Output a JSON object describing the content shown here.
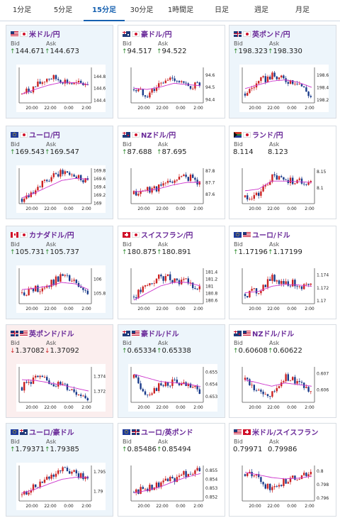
{
  "tabs": [
    "1分足",
    "5分足",
    "15分足",
    "30分足",
    "1時間足",
    "日足",
    "週足",
    "月足"
  ],
  "active_tab": "15分足",
  "bid_label": "Bid",
  "ask_label": "Ask",
  "colors": {
    "up": "#2b8a2b",
    "down": "#cc2222",
    "pair": "#6a2a99",
    "bull": "#cc2222",
    "bear": "#1a3b8a",
    "ma": "#cc33cc"
  },
  "time_ticks": [
    "20:00",
    "22:00",
    "0:00",
    "2:00"
  ],
  "cards": [
    {
      "pair": "米ドル/円",
      "flags": [
        "us",
        "jp"
      ],
      "bid": "144.671",
      "ask": "144.673",
      "bid_dir": "up",
      "ask_dir": "up",
      "bg": "blue",
      "icon": "us-jp-flags-icon",
      "chart_data": {
        "type": "candlestick",
        "x": [
          "20:00",
          "22:00",
          "0:00",
          "2:00"
        ],
        "yticks": [
          "144.8",
          "144.6",
          "144.4"
        ],
        "ylim": [
          144.35,
          144.95
        ],
        "trend": [
          144.5,
          144.62,
          144.78,
          144.74,
          144.66,
          144.68
        ],
        "ma": [
          144.5,
          144.58,
          144.65,
          144.7,
          144.69,
          144.66
        ]
      }
    },
    {
      "pair": "豪ドル/円",
      "flags": [
        "au",
        "jp"
      ],
      "bid": "94.517",
      "ask": "94.522",
      "bid_dir": "up",
      "ask_dir": "up",
      "bg": "white",
      "icon": "au-jp-flags-icon",
      "chart_data": {
        "type": "candlestick",
        "x": [
          "20:00",
          "22:00",
          "0:00",
          "2:00"
        ],
        "yticks": [
          "94.6",
          "94.5",
          "94.4"
        ],
        "ylim": [
          94.37,
          94.66
        ],
        "trend": [
          94.48,
          94.44,
          94.52,
          94.58,
          94.5,
          94.52
        ],
        "ma": [
          94.49,
          94.48,
          94.5,
          94.53,
          94.52,
          94.51
        ]
      }
    },
    {
      "pair": "英ポンド/円",
      "flags": [
        "gb",
        "jp"
      ],
      "bid": "198.323",
      "ask": "198.330",
      "bid_dir": "up",
      "ask_dir": "up",
      "bg": "blue",
      "icon": "gb-jp-flags-icon",
      "chart_data": {
        "type": "candlestick",
        "x": [
          "20:00",
          "22:00",
          "0:00",
          "2:00"
        ],
        "yticks": [
          "198.6",
          "198.4",
          "198.2"
        ],
        "ylim": [
          198.15,
          198.72
        ],
        "trend": [
          198.3,
          198.48,
          198.58,
          198.52,
          198.5,
          198.25
        ],
        "ma": [
          198.38,
          198.44,
          198.5,
          198.52,
          198.48,
          198.4
        ]
      }
    },
    {
      "pair": "ユーロ/円",
      "flags": [
        "eu",
        "jp"
      ],
      "bid": "169.543",
      "ask": "169.547",
      "bid_dir": "up",
      "ask_dir": "up",
      "bg": "blue",
      "icon": "eu-jp-flags-icon",
      "chart_data": {
        "type": "candlestick",
        "x": [
          "20:00",
          "22:00",
          "0:00",
          "2:00"
        ],
        "yticks": [
          "169.8",
          "169.6",
          "169.4",
          "169.2",
          "169"
        ],
        "ylim": [
          168.98,
          169.85
        ],
        "trend": [
          169.1,
          169.35,
          169.55,
          169.75,
          169.68,
          169.55
        ],
        "ma": [
          169.12,
          169.25,
          169.4,
          169.55,
          169.6,
          169.58
        ]
      }
    },
    {
      "pair": "NZドル/円",
      "flags": [
        "nz",
        "jp"
      ],
      "bid": "87.688",
      "ask": "87.695",
      "bid_dir": "up",
      "ask_dir": "up",
      "bg": "white",
      "icon": "nz-jp-flags-icon",
      "chart_data": {
        "type": "candlestick",
        "x": [
          "20:00",
          "22:00",
          "0:00",
          "2:00"
        ],
        "yticks": [
          "87.8",
          "87.7",
          "87.6"
        ],
        "ylim": [
          87.52,
          87.82
        ],
        "trend": [
          87.6,
          87.64,
          87.66,
          87.72,
          87.75,
          87.7
        ],
        "ma": [
          87.62,
          87.63,
          87.65,
          87.68,
          87.7,
          87.7
        ]
      }
    },
    {
      "pair": "ランド/円",
      "flags": [
        "za",
        "jp"
      ],
      "bid": "8.114",
      "ask": "8.123",
      "bid_dir": "none",
      "ask_dir": "none",
      "bg": "white",
      "icon": "za-jp-flags-icon",
      "chart_data": {
        "type": "candlestick",
        "x": [
          "20:00",
          "22:00",
          "0:00",
          "2:00"
        ],
        "yticks": [
          "8.15",
          "8.1"
        ],
        "ylim": [
          8.05,
          8.16
        ],
        "trend": [
          8.07,
          8.075,
          8.13,
          8.125,
          8.12,
          8.115
        ],
        "ma": [
          8.09,
          8.095,
          8.12,
          8.12,
          8.118,
          8.116
        ]
      }
    },
    {
      "pair": "カナダドル/円",
      "flags": [
        "ca",
        "jp"
      ],
      "bid": "105.731",
      "ask": "105.737",
      "bid_dir": "up",
      "ask_dir": "up",
      "bg": "blue",
      "icon": "ca-jp-flags-icon",
      "chart_data": {
        "type": "candlestick",
        "x": [
          "20:00",
          "22:00",
          "0:00",
          "2:00"
        ],
        "yticks": [
          "106",
          "105.8"
        ],
        "ylim": [
          105.65,
          106.15
        ],
        "trend": [
          105.8,
          105.85,
          105.9,
          106.05,
          105.95,
          105.75
        ],
        "ma": [
          105.85,
          105.87,
          105.9,
          105.95,
          105.93,
          105.85
        ]
      }
    },
    {
      "pair": "スイスフラン/円",
      "flags": [
        "ch",
        "jp"
      ],
      "bid": "180.875",
      "ask": "180.891",
      "bid_dir": "up",
      "ask_dir": "up",
      "bg": "white",
      "icon": "ch-jp-flags-icon",
      "chart_data": {
        "type": "candlestick",
        "x": [
          "20:00",
          "22:00",
          "0:00",
          "2:00"
        ],
        "yticks": [
          "181.4",
          "181.2",
          "181",
          "180.8",
          "180.6"
        ],
        "ylim": [
          180.5,
          181.5
        ],
        "trend": [
          180.7,
          181.0,
          181.25,
          181.2,
          181.1,
          180.9
        ],
        "ma": [
          180.6,
          180.8,
          181.0,
          181.1,
          181.1,
          181.0
        ]
      }
    },
    {
      "pair": "ユーロ/ドル",
      "flags": [
        "eu",
        "us"
      ],
      "bid": "1.17196",
      "ask": "1.17199",
      "bid_dir": "up",
      "ask_dir": "up",
      "bg": "white",
      "icon": "eu-us-flags-icon",
      "chart_data": {
        "type": "candlestick",
        "x": [
          "20:00",
          "22:00",
          "0:00",
          "2:00"
        ],
        "yticks": [
          "1.174",
          "1.172",
          "1.17"
        ],
        "ylim": [
          1.1695,
          1.175
        ],
        "trend": [
          1.171,
          1.1715,
          1.1735,
          1.1728,
          1.1725,
          1.172
        ],
        "ma": [
          1.1712,
          1.1714,
          1.1722,
          1.1725,
          1.1724,
          1.1722
        ]
      }
    },
    {
      "pair": "英ポンド/ドル",
      "flags": [
        "gb",
        "us"
      ],
      "bid": "1.37082",
      "ask": "1.37092",
      "bid_dir": "down",
      "ask_dir": "down",
      "bg": "pink",
      "icon": "gb-us-flags-icon",
      "chart_data": {
        "type": "candlestick",
        "x": [
          "20:00",
          "22:00",
          "0:00",
          "2:00"
        ],
        "yticks": [
          "1.374",
          "1.372"
        ],
        "ylim": [
          1.3705,
          1.3752
        ],
        "trend": [
          1.3725,
          1.3738,
          1.3732,
          1.3728,
          1.372,
          1.3712
        ],
        "ma": [
          1.3735,
          1.3734,
          1.3731,
          1.3728,
          1.3724,
          1.372
        ]
      }
    },
    {
      "pair": "豪ドル/ドル",
      "flags": [
        "au",
        "us"
      ],
      "bid": "0.65334",
      "ask": "0.65338",
      "bid_dir": "up",
      "ask_dir": "up",
      "bg": "blue",
      "icon": "au-us-flags-icon",
      "chart_data": {
        "type": "candlestick",
        "x": [
          "20:00",
          "22:00",
          "0:00",
          "2:00"
        ],
        "yticks": [
          "0.655",
          "0.654",
          "0.653"
        ],
        "ylim": [
          0.6525,
          0.6554
        ],
        "trend": [
          0.6545,
          0.6532,
          0.6538,
          0.6542,
          0.6538,
          0.6534
        ],
        "ma": [
          0.6548,
          0.6545,
          0.6542,
          0.6541,
          0.654,
          0.6538
        ]
      }
    },
    {
      "pair": "NZドル/ドル",
      "flags": [
        "nz",
        "us"
      ],
      "bid": "0.60608",
      "ask": "0.60622",
      "bid_dir": "up",
      "ask_dir": "up",
      "bg": "white",
      "icon": "nz-us-flags-icon",
      "chart_data": {
        "type": "candlestick",
        "x": [
          "20:00",
          "22:00",
          "0:00",
          "2:00"
        ],
        "yticks": [
          "0.607",
          "0.606"
        ],
        "ylim": [
          0.6052,
          0.6074
        ],
        "trend": [
          0.6066,
          0.6058,
          0.6056,
          0.6068,
          0.6064,
          0.606
        ],
        "ma": [
          0.6066,
          0.6064,
          0.6062,
          0.6064,
          0.6063,
          0.6062
        ]
      }
    },
    {
      "pair": "ユーロ/豪ドル",
      "flags": [
        "eu",
        "au"
      ],
      "bid": "1.79371",
      "ask": "1.79385",
      "bid_dir": "up",
      "ask_dir": "up",
      "bg": "blue",
      "icon": "eu-au-flags-icon",
      "chart_data": {
        "type": "candlestick",
        "x": [
          "20:00",
          "22:00",
          "0:00",
          "2:00"
        ],
        "yticks": [
          "1.795",
          "1.79"
        ],
        "ylim": [
          1.7875,
          1.7965
        ],
        "trend": [
          1.789,
          1.791,
          1.7935,
          1.7955,
          1.7945,
          1.7935
        ],
        "ma": [
          1.7895,
          1.7905,
          1.7918,
          1.793,
          1.7935,
          1.7935
        ]
      }
    },
    {
      "pair": "ユーロ/英ポンド",
      "flags": [
        "eu",
        "gb"
      ],
      "bid": "0.85486",
      "ask": "0.85494",
      "bid_dir": "up",
      "ask_dir": "up",
      "bg": "white",
      "icon": "eu-gb-flags-icon",
      "chart_data": {
        "type": "candlestick",
        "x": [
          "20:00",
          "22:00",
          "0:00",
          "2:00"
        ],
        "yticks": [
          "0.855",
          "0.854",
          "0.853",
          "0.852"
        ],
        "ylim": [
          0.8515,
          0.8555
        ],
        "trend": [
          0.8525,
          0.853,
          0.8535,
          0.854,
          0.8546,
          0.8549
        ],
        "ma": [
          0.8524,
          0.8527,
          0.8531,
          0.8537,
          0.8542,
          0.8546
        ]
      }
    },
    {
      "pair": "米ドル/スイスフラン",
      "flags": [
        "us",
        "ch"
      ],
      "bid": "0.79971",
      "ask": "0.79986",
      "bid_dir": "none",
      "ask_dir": "none",
      "bg": "white",
      "icon": "us-ch-flags-icon",
      "chart_data": {
        "type": "candlestick",
        "x": [
          "20:00",
          "22:00",
          "0:00",
          "2:00"
        ],
        "yticks": [
          "0.8",
          "0.798",
          "0.796"
        ],
        "ylim": [
          0.7955,
          0.8008
        ],
        "trend": [
          0.7995,
          0.799,
          0.797,
          0.7985,
          0.799,
          0.7998
        ],
        "ma": [
          0.7998,
          0.7994,
          0.799,
          0.7988,
          0.7989,
          0.7992
        ]
      }
    }
  ]
}
